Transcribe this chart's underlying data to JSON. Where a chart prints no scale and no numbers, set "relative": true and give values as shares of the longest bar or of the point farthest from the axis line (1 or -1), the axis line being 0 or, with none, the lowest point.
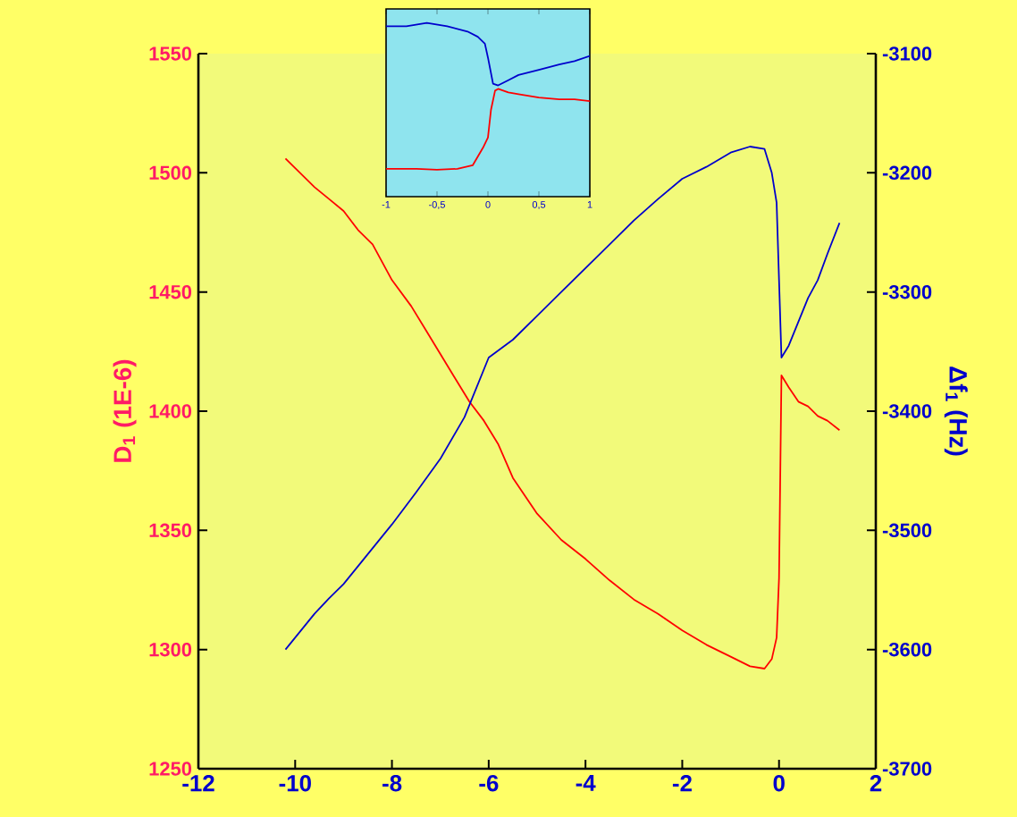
{
  "chart_data": [
    {
      "type": "line",
      "ylabel": "D$_{1}$ (1E-6)",
      "y2label": "Δf$_{1}$ (Hz)",
      "xlim": [
        -12,
        2
      ],
      "xticks": [
        -12,
        -10,
        -8,
        -6,
        -4,
        -2,
        0,
        2
      ],
      "ylim": [
        1250,
        1550
      ],
      "yticks": [
        1250,
        1300,
        1350,
        1400,
        1450,
        1500,
        1550
      ],
      "y2lim": [
        -3700,
        -3100
      ],
      "y2ticks": [
        -3700,
        -3600,
        -3500,
        -3400,
        -3300,
        -3200,
        -3100
      ],
      "marker": "none",
      "series": [
        {
          "color": "#ff0000",
          "x": [
            -10.2,
            -9.9,
            -9.6,
            -9.3,
            -9,
            -8.7,
            -8.4,
            -8,
            -7.6,
            -7.3,
            -7,
            -6.7,
            -6.4,
            -6.1,
            -5.8,
            -5.5,
            -5,
            -4.5,
            -4,
            -3.5,
            -3,
            -2.5,
            -2,
            -1.5,
            -1,
            -0.6,
            -0.3,
            -0.15,
            -0.05,
            0,
            0.05,
            0.2,
            0.4,
            0.6,
            0.8,
            1,
            1.25
          ],
          "values": [
            1506,
            1500,
            1494,
            1489,
            1484,
            1476,
            1470,
            1455,
            1444,
            1434,
            1424,
            1414,
            1404,
            1396,
            1386,
            1372,
            1357,
            1346,
            1338,
            1329,
            1321,
            1315,
            1308,
            1302,
            1297,
            1293,
            1292,
            1296,
            1305,
            1330,
            1415,
            1410,
            1404,
            1402,
            1398,
            1396,
            1392
          ]
        },
        {
          "color": "#0000cc",
          "axis": "y2",
          "x": [
            -10.2,
            -9.9,
            -9.6,
            -9.3,
            -9,
            -8.5,
            -8,
            -7.5,
            -7,
            -6.5,
            -6,
            -5.5,
            -5,
            -4.5,
            -4,
            -3.5,
            -3,
            -2.5,
            -2,
            -1.5,
            -1,
            -0.6,
            -0.3,
            -0.15,
            -0.05,
            0,
            0.05,
            0.2,
            0.4,
            0.6,
            0.8,
            1,
            1.25
          ],
          "values": [
            -3600,
            -3585,
            -3570,
            -3557,
            -3545,
            -3520,
            -3495,
            -3468,
            -3440,
            -3405,
            -3355,
            -3340,
            -3320,
            -3300,
            -3280,
            -3260,
            -3240,
            -3222,
            -3205,
            -3195,
            -3183,
            -3178,
            -3180,
            -3200,
            -3225,
            -3290,
            -3355,
            -3345,
            -3325,
            -3305,
            -3290,
            -3268,
            -3242
          ]
        }
      ]
    },
    {
      "type": "line",
      "relative": true,
      "xlim": [
        -1,
        1
      ],
      "xticks": [
        -1,
        {
          "value": -0.5,
          "label": "-0,5"
        },
        0,
        {
          "value": 0.5,
          "label": "0,5"
        },
        1
      ],
      "marker": "none",
      "series": [
        {
          "color": "#0000cc",
          "x": [
            -1,
            -0.8,
            -0.6,
            -0.4,
            -0.2,
            -0.1,
            -0.03,
            0,
            0.05,
            0.1,
            0.2,
            0.3,
            0.5,
            0.7,
            0.85,
            1
          ],
          "values": [
            0.98,
            0.98,
            1.0,
            0.98,
            0.95,
            0.92,
            0.88,
            0.8,
            0.65,
            0.64,
            0.67,
            0.7,
            0.73,
            0.76,
            0.78,
            0.81
          ]
        },
        {
          "color": "#ff0000",
          "x": [
            -1,
            -0.7,
            -0.5,
            -0.3,
            -0.15,
            -0.05,
            0,
            0.03,
            0.07,
            0.1,
            0.2,
            0.3,
            0.5,
            0.7,
            0.85,
            1
          ],
          "values": [
            0.16,
            0.16,
            0.155,
            0.16,
            0.18,
            0.28,
            0.34,
            0.5,
            0.61,
            0.62,
            0.6,
            0.59,
            0.57,
            0.56,
            0.56,
            0.55
          ]
        }
      ]
    }
  ]
}
